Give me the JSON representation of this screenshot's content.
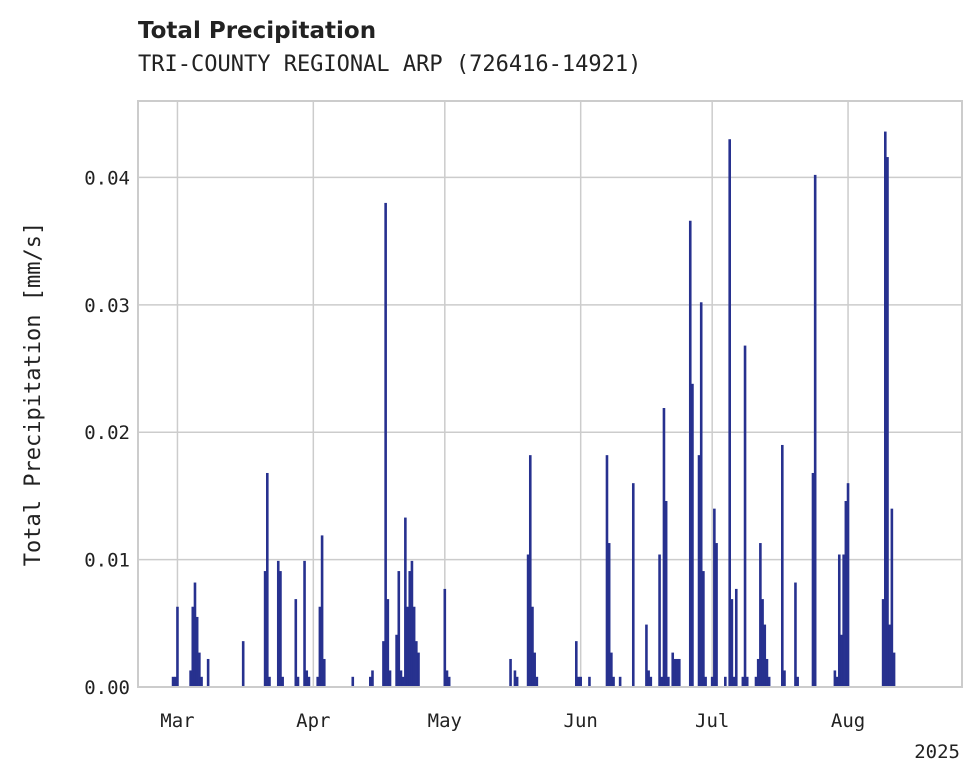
{
  "header": {
    "title": "Total Precipitation",
    "subtitle": "TRI-COUNTY REGIONAL ARP (726416-14921)"
  },
  "colors": {
    "bar": "#27318f",
    "grid": "#cccccc",
    "axis": "#cccccc"
  },
  "chart_data": {
    "type": "bar",
    "title": "Total Precipitation",
    "subtitle": "TRI-COUNTY REGIONAL ARP (726416-14921)",
    "xlabel": "",
    "ylabel": "Total Precipitation [mm/s]",
    "ylim": [
      0,
      0.046
    ],
    "xlim": [
      "2025-02-20",
      "2025-08-27"
    ],
    "year_label": "2025",
    "grid": true,
    "yticks": [
      {
        "value": 0.0,
        "label": "0.00"
      },
      {
        "value": 0.01,
        "label": "0.01"
      },
      {
        "value": 0.02,
        "label": "0.02"
      },
      {
        "value": 0.03,
        "label": "0.03"
      },
      {
        "value": 0.04,
        "label": "0.04"
      }
    ],
    "xticks": [
      {
        "date": "2025-03-01",
        "label": "Mar"
      },
      {
        "date": "2025-04-01",
        "label": "Apr"
      },
      {
        "date": "2025-05-01",
        "label": "May"
      },
      {
        "date": "2025-06-01",
        "label": "Jun"
      },
      {
        "date": "2025-07-01",
        "label": "Jul"
      },
      {
        "date": "2025-08-01",
        "label": "Aug"
      }
    ],
    "points": [
      [
        "2025-02-28",
        0.0008
      ],
      [
        "2025-02-28T12",
        0.0008
      ],
      [
        "2025-03-01",
        0.0063
      ],
      [
        "2025-03-04",
        0.0013
      ],
      [
        "2025-03-04T12",
        0.0063
      ],
      [
        "2025-03-05",
        0.0082
      ],
      [
        "2025-03-05T12",
        0.0055
      ],
      [
        "2025-03-06",
        0.0027
      ],
      [
        "2025-03-06T12",
        0.0008
      ],
      [
        "2025-03-08",
        0.0022
      ],
      [
        "2025-03-16",
        0.0036
      ],
      [
        "2025-03-21",
        0.0091
      ],
      [
        "2025-03-21T12",
        0.0168
      ],
      [
        "2025-03-22",
        0.0008
      ],
      [
        "2025-03-24",
        0.0099
      ],
      [
        "2025-03-24T12",
        0.0091
      ],
      [
        "2025-03-25",
        0.0008
      ],
      [
        "2025-03-28",
        0.0069
      ],
      [
        "2025-03-28T12",
        0.0008
      ],
      [
        "2025-03-30",
        0.0099
      ],
      [
        "2025-03-30T12",
        0.0013
      ],
      [
        "2025-03-31",
        0.0008
      ],
      [
        "2025-04-02",
        0.0008
      ],
      [
        "2025-04-02T12",
        0.0063
      ],
      [
        "2025-04-03",
        0.0119
      ],
      [
        "2025-04-03T12",
        0.0022
      ],
      [
        "2025-04-10",
        0.0008
      ],
      [
        "2025-04-14",
        0.0008
      ],
      [
        "2025-04-14T12",
        0.0013
      ],
      [
        "2025-04-17",
        0.0036
      ],
      [
        "2025-04-17T12",
        0.038
      ],
      [
        "2025-04-18",
        0.0069
      ],
      [
        "2025-04-18T12",
        0.0013
      ],
      [
        "2025-04-20",
        0.0041
      ],
      [
        "2025-04-20T12",
        0.0091
      ],
      [
        "2025-04-21",
        0.0013
      ],
      [
        "2025-04-21T12",
        0.0008
      ],
      [
        "2025-04-22",
        0.0133
      ],
      [
        "2025-04-22T12",
        0.0063
      ],
      [
        "2025-04-23",
        0.0091
      ],
      [
        "2025-04-23T12",
        0.0099
      ],
      [
        "2025-04-24",
        0.0063
      ],
      [
        "2025-04-24T12",
        0.0036
      ],
      [
        "2025-04-25",
        0.0027
      ],
      [
        "2025-05-01",
        0.0077
      ],
      [
        "2025-05-01T12",
        0.0013
      ],
      [
        "2025-05-02",
        0.0008
      ],
      [
        "2025-05-16",
        0.0022
      ],
      [
        "2025-05-17",
        0.0013
      ],
      [
        "2025-05-17T12",
        0.0008
      ],
      [
        "2025-05-20",
        0.0104
      ],
      [
        "2025-05-20T12",
        0.0182
      ],
      [
        "2025-05-21",
        0.0063
      ],
      [
        "2025-05-21T12",
        0.0027
      ],
      [
        "2025-05-22",
        0.0008
      ],
      [
        "2025-05-31",
        0.0036
      ],
      [
        "2025-05-31T12",
        0.0008
      ],
      [
        "2025-06-01",
        0.0008
      ],
      [
        "2025-06-03",
        0.0008
      ],
      [
        "2025-06-07",
        0.0182
      ],
      [
        "2025-06-07T12",
        0.0113
      ],
      [
        "2025-06-08",
        0.0027
      ],
      [
        "2025-06-08T12",
        0.0008
      ],
      [
        "2025-06-10",
        0.0008
      ],
      [
        "2025-06-13",
        0.016
      ],
      [
        "2025-06-16",
        0.0049
      ],
      [
        "2025-06-16T12",
        0.0013
      ],
      [
        "2025-06-17",
        0.0008
      ],
      [
        "2025-06-19",
        0.0104
      ],
      [
        "2025-06-19T12",
        0.0008
      ],
      [
        "2025-06-20",
        0.0219
      ],
      [
        "2025-06-20T12",
        0.0146
      ],
      [
        "2025-06-21",
        0.0008
      ],
      [
        "2025-06-22",
        0.0027
      ],
      [
        "2025-06-22T12",
        0.0022
      ],
      [
        "2025-06-23",
        0.0022
      ],
      [
        "2025-06-23T12",
        0.0022
      ],
      [
        "2025-06-26",
        0.0366
      ],
      [
        "2025-06-26T12",
        0.0238
      ],
      [
        "2025-06-28",
        0.0182
      ],
      [
        "2025-06-28T12",
        0.0302
      ],
      [
        "2025-06-29",
        0.0091
      ],
      [
        "2025-06-29T12",
        0.0008
      ],
      [
        "2025-07-01",
        0.0008
      ],
      [
        "2025-07-01T12",
        0.014
      ],
      [
        "2025-07-02",
        0.0113
      ],
      [
        "2025-07-04",
        0.0008
      ],
      [
        "2025-07-05",
        0.043
      ],
      [
        "2025-07-05T12",
        0.0069
      ],
      [
        "2025-07-06",
        0.0008
      ],
      [
        "2025-07-06T12",
        0.0077
      ],
      [
        "2025-07-08",
        0.0008
      ],
      [
        "2025-07-08T12",
        0.0268
      ],
      [
        "2025-07-09",
        0.0008
      ],
      [
        "2025-07-11",
        0.0008
      ],
      [
        "2025-07-11T12",
        0.0022
      ],
      [
        "2025-07-12",
        0.0113
      ],
      [
        "2025-07-12T12",
        0.0069
      ],
      [
        "2025-07-13",
        0.0049
      ],
      [
        "2025-07-13T12",
        0.0022
      ],
      [
        "2025-07-14",
        0.0008
      ],
      [
        "2025-07-17",
        0.019
      ],
      [
        "2025-07-17T12",
        0.0013
      ],
      [
        "2025-07-20",
        0.0082
      ],
      [
        "2025-07-20T12",
        0.0008
      ],
      [
        "2025-07-24",
        0.0168
      ],
      [
        "2025-07-24T12",
        0.0402
      ],
      [
        "2025-07-29",
        0.0013
      ],
      [
        "2025-07-29T12",
        0.0008
      ],
      [
        "2025-07-30",
        0.0104
      ],
      [
        "2025-07-30T12",
        0.0041
      ],
      [
        "2025-07-31",
        0.0104
      ],
      [
        "2025-07-31T12",
        0.0146
      ],
      [
        "2025-08-01",
        0.016
      ],
      [
        "2025-08-09",
        0.0069
      ],
      [
        "2025-08-09T12",
        0.0436
      ],
      [
        "2025-08-10",
        0.0416
      ],
      [
        "2025-08-10T12",
        0.0049
      ],
      [
        "2025-08-11",
        0.014
      ],
      [
        "2025-08-11T12",
        0.0027
      ]
    ]
  }
}
